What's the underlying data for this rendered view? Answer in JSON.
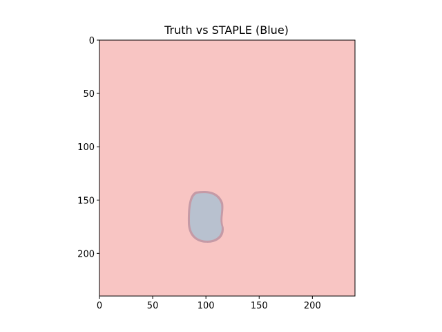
{
  "chart_data": {
    "type": "heatmap",
    "title": "Truth vs STAPLE (Blue)",
    "xlabel": "",
    "ylabel": "",
    "xlim": [
      0,
      240
    ],
    "ylim": [
      240,
      0
    ],
    "image_size": [
      240,
      240
    ],
    "x_ticks": [
      0,
      50,
      100,
      150,
      200
    ],
    "y_ticks": [
      0,
      50,
      100,
      150,
      200
    ],
    "grid": false,
    "layers": [
      {
        "name": "Truth",
        "role": "background overlay",
        "color": "#f8c5c3"
      },
      {
        "name": "Truth region",
        "role": "segmentation mask",
        "color": "#c59aa6",
        "center": [
          100,
          166
        ],
        "half_width": 17,
        "half_height": 24
      },
      {
        "name": "STAPLE",
        "role": "segmentation mask",
        "color": "#b8c1cf",
        "center": [
          100,
          166
        ],
        "half_width": 15,
        "half_height": 22
      }
    ]
  }
}
